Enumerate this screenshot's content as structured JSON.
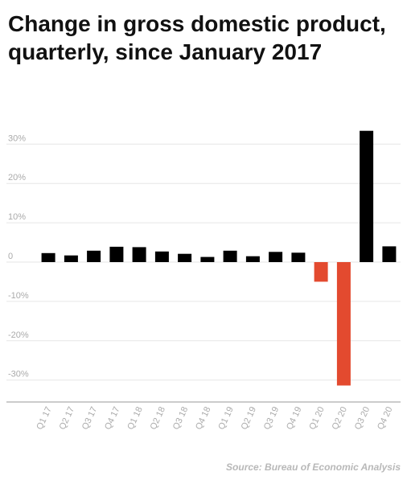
{
  "header": {
    "title": "Change in gross domestic product, quarterly, since January 2017"
  },
  "footer": {
    "source": "Source: Bureau of Economic Analysis"
  },
  "colors": {
    "positive_bar": "#000000",
    "negative_bar": "#e34a2f",
    "gridline": "#e6e6e6",
    "tick_text": "#aaaaaa",
    "title_text": "#111111"
  },
  "chart_data": {
    "type": "bar",
    "title": "Change in gross domestic product, quarterly, since January 2017",
    "xlabel": "",
    "ylabel": "",
    "ylim": [
      -35,
      35
    ],
    "yticks": [
      -30,
      -20,
      -10,
      0,
      10,
      20,
      30
    ],
    "ytick_labels": [
      "-30%",
      "-20%",
      "-10%",
      "0",
      "10%",
      "20%",
      "30%"
    ],
    "grid": true,
    "categories": [
      "Q1 17",
      "Q2 17",
      "Q3 17",
      "Q4 17",
      "Q1 18",
      "Q2 18",
      "Q3 18",
      "Q4 18",
      "Q1 19",
      "Q2 19",
      "Q3 19",
      "Q4 19",
      "Q1 20",
      "Q2 20",
      "Q3 20",
      "Q4 20"
    ],
    "values": [
      2.3,
      1.7,
      2.9,
      3.9,
      3.8,
      2.7,
      2.1,
      1.3,
      2.9,
      1.5,
      2.6,
      2.4,
      -5.0,
      -31.4,
      33.4,
      4.0
    ]
  }
}
